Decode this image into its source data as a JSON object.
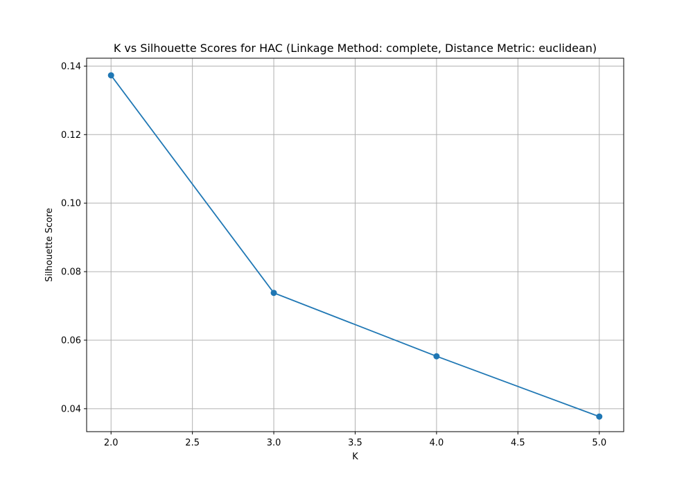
{
  "chart_data": {
    "type": "line",
    "title": "K vs Silhouette Scores for HAC (Linkage Method: complete, Distance Metric: euclidean)",
    "xlabel": "K",
    "ylabel": "Silhouette Score",
    "grid": true,
    "xlim": [
      1.85,
      5.15
    ],
    "ylim": [
      0.0333,
      0.1423
    ],
    "xticks": [
      2.0,
      2.5,
      3.0,
      3.5,
      4.0,
      4.5,
      5.0
    ],
    "xtick_labels": [
      "2.0",
      "2.5",
      "3.0",
      "3.5",
      "4.0",
      "4.5",
      "5.0"
    ],
    "yticks": [
      0.04,
      0.06,
      0.08,
      0.1,
      0.12,
      0.14
    ],
    "ytick_labels": [
      "0.04",
      "0.06",
      "0.08",
      "0.10",
      "0.12",
      "0.14"
    ],
    "series": [
      {
        "name": "Silhouette Score",
        "color": "#1f77b4",
        "marker": "circle",
        "x": [
          2,
          3,
          4,
          5
        ],
        "values": [
          0.1373,
          0.0738,
          0.0553,
          0.0377
        ]
      }
    ]
  }
}
